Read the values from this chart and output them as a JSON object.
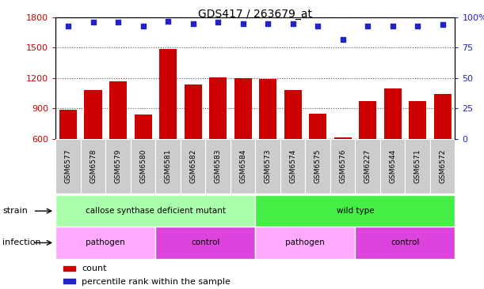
{
  "title": "GDS417 / 263679_at",
  "samples": [
    "GSM6577",
    "GSM6578",
    "GSM6579",
    "GSM6580",
    "GSM6581",
    "GSM6582",
    "GSM6583",
    "GSM6584",
    "GSM6573",
    "GSM6574",
    "GSM6575",
    "GSM6576",
    "GSM6227",
    "GSM6544",
    "GSM6571",
    "GSM6572"
  ],
  "counts": [
    890,
    1080,
    1170,
    840,
    1490,
    1140,
    1210,
    1200,
    1190,
    1080,
    850,
    615,
    970,
    1100,
    970,
    1040
  ],
  "percentiles": [
    93,
    96,
    96,
    93,
    97,
    95,
    96,
    95,
    95,
    95,
    93,
    82,
    93,
    93,
    93,
    94
  ],
  "ylim_left": [
    600,
    1800
  ],
  "ylim_right": [
    0,
    100
  ],
  "yticks_left": [
    600,
    900,
    1200,
    1500,
    1800
  ],
  "yticks_right": [
    0,
    25,
    50,
    75,
    100
  ],
  "ytick_labels_right": [
    "0",
    "25",
    "50",
    "75",
    "100%"
  ],
  "bar_color": "#cc0000",
  "dot_color": "#2222cc",
  "strain_labels": [
    {
      "text": "callose synthase deficient mutant",
      "start": 0,
      "end": 8,
      "color": "#aaffaa"
    },
    {
      "text": "wild type",
      "start": 8,
      "end": 16,
      "color": "#44ee44"
    }
  ],
  "infection_labels": [
    {
      "text": "pathogen",
      "start": 0,
      "end": 4,
      "color": "#ffaaff"
    },
    {
      "text": "control",
      "start": 4,
      "end": 8,
      "color": "#dd44dd"
    },
    {
      "text": "pathogen",
      "start": 8,
      "end": 12,
      "color": "#ffaaff"
    },
    {
      "text": "control",
      "start": 12,
      "end": 16,
      "color": "#dd44dd"
    }
  ],
  "legend_items": [
    {
      "label": "count",
      "color": "#cc0000"
    },
    {
      "label": "percentile rank within the sample",
      "color": "#2222cc"
    }
  ],
  "grid_color": "#555555",
  "tick_label_color_left": "#cc0000",
  "tick_label_color_right": "#2222cc",
  "background_color": "#ffffff",
  "plot_bg_color": "#ffffff",
  "xticklabel_bg_color": "#cccccc"
}
